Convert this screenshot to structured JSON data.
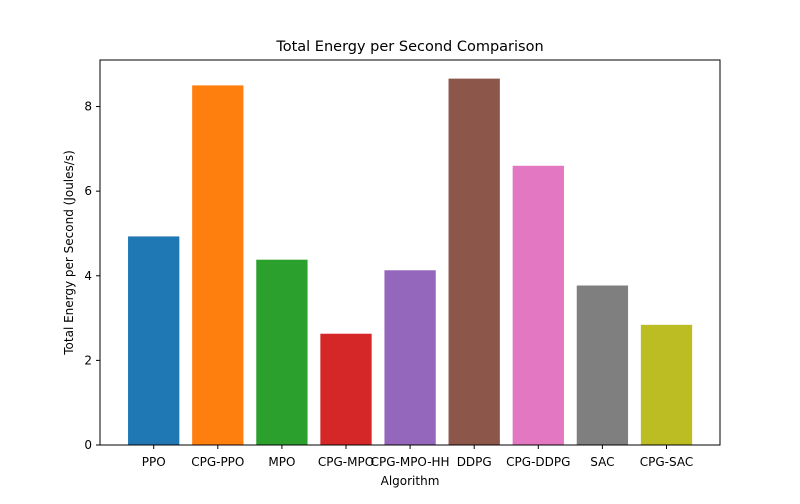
{
  "chart_data": {
    "type": "bar",
    "title": "Total Energy per Second Comparison",
    "xlabel": "Algorithm",
    "ylabel": "Total Energy per Second (Joules/s)",
    "categories": [
      "PPO",
      "CPG-PPO",
      "MPO",
      "CPG-MPO",
      "CPG-MPO-HH",
      "DDPG",
      "CPG-DDPG",
      "SAC",
      "CPG-SAC"
    ],
    "values": [
      4.93,
      8.5,
      4.38,
      2.63,
      4.13,
      8.66,
      6.6,
      3.77,
      2.84
    ],
    "colors": [
      "#1f77b4",
      "#ff7f0e",
      "#2ca02c",
      "#d62728",
      "#9467bd",
      "#8c564b",
      "#e377c2",
      "#7f7f7f",
      "#bcbd22"
    ],
    "ylim": [
      0,
      9.1
    ],
    "yticks": [
      0,
      2,
      4,
      6,
      8
    ],
    "grid": false,
    "legend": "none"
  }
}
